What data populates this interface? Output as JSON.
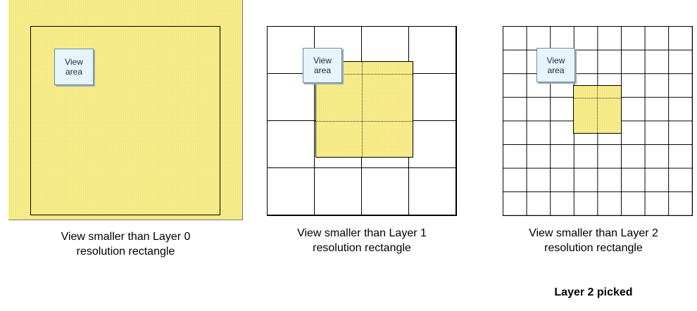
{
  "panels": [
    {
      "view_label_line1": "View",
      "view_label_line2": "area",
      "caption_line1": "View smaller than Layer 0",
      "caption_line2": "resolution rectangle"
    },
    {
      "view_label_line1": "View",
      "view_label_line2": "area",
      "caption_line1": "View smaller than Layer 1",
      "caption_line2": "resolution rectangle"
    },
    {
      "view_label_line1": "View",
      "view_label_line2": "area",
      "caption_line1": "View smaller than Layer 2",
      "caption_line2": "resolution rectangle"
    }
  ],
  "result_label": "Layer 2 picked"
}
